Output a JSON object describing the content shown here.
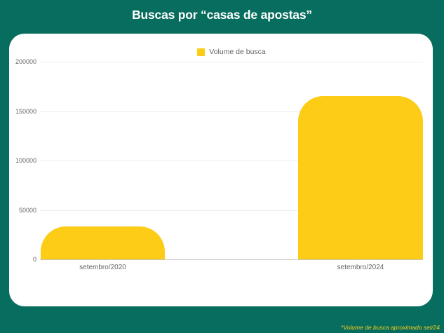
{
  "page": {
    "title": "Buscas por “casas de apostas”",
    "footnote": "*Volume de busca aproximado set/24"
  },
  "colors": {
    "background": "#076D5E",
    "card": "#FFFFFF",
    "bar": "#FCCC17",
    "grid_line": "#EDEDED",
    "axis_line": "#C2C2C2",
    "tick_text": "#666666",
    "title_text": "#FFFFFF",
    "footnote_text": "#FCCC17"
  },
  "legend": {
    "label": "Volume de busca",
    "swatch_color": "#FCCC17"
  },
  "chart_data": {
    "type": "bar",
    "categories": [
      "setembro/2020",
      "setembro/2024"
    ],
    "series": [
      {
        "name": "Volume de busca",
        "values": [
          33100,
          165000
        ]
      }
    ],
    "title": "Buscas por “casas de apostas”",
    "xlabel": "",
    "ylabel": "",
    "ylim": [
      0,
      200000
    ],
    "yticks": [
      0,
      50000,
      100000,
      150000,
      200000
    ],
    "ytick_labels": [
      "0",
      "50000",
      "100000",
      "150000",
      "200000"
    ],
    "grid": "horizontal-only",
    "legend_position": "top-center",
    "bar_color": "#FCCC17",
    "annotations": [
      "*Volume de busca aproximado set/24"
    ]
  }
}
